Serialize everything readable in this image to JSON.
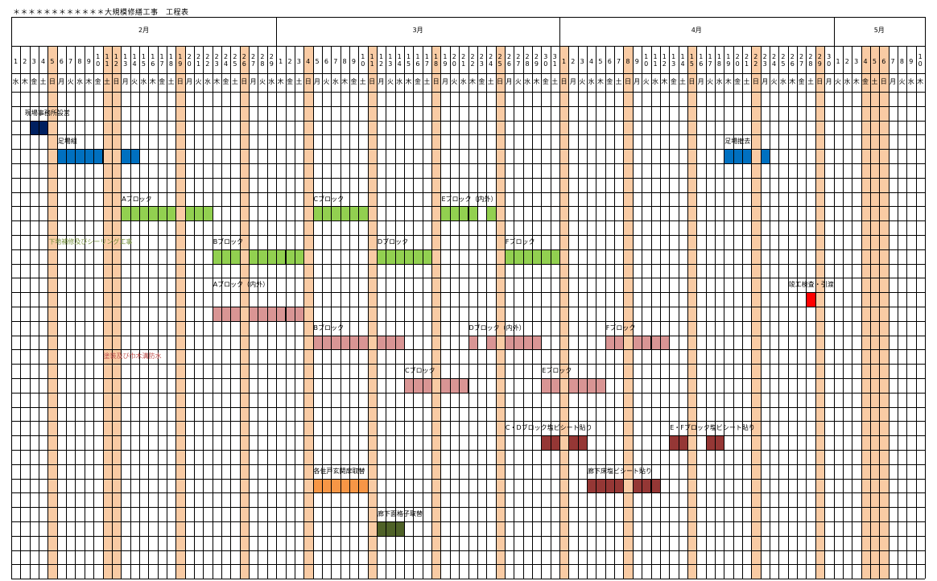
{
  "doc_title": "＊＊＊＊＊＊＊＊＊＊＊＊大規模修繕工事　工程表",
  "months": [
    "2月",
    "3月",
    "4月",
    "5月"
  ],
  "day_numbers": [
    "1",
    "2",
    "3",
    "4",
    "5",
    "6",
    "7",
    "8",
    "9",
    "10",
    "11",
    "12",
    "13",
    "14",
    "15",
    "16",
    "17",
    "18",
    "19",
    "20",
    "21",
    "22",
    "23",
    "24",
    "25",
    "26",
    "27",
    "28",
    "29",
    "1",
    "2",
    "3",
    "4",
    "5",
    "6",
    "7",
    "8",
    "9",
    "10",
    "11",
    "12",
    "13",
    "14",
    "15",
    "16",
    "17",
    "18",
    "19",
    "20",
    "21",
    "22",
    "23",
    "24",
    "25",
    "26",
    "27",
    "28",
    "29",
    "30",
    "31",
    "1",
    "2",
    "3",
    "4",
    "5",
    "6",
    "7",
    "8",
    "9",
    "10",
    "11",
    "12",
    "13",
    "14",
    "15",
    "16",
    "17",
    "18",
    "19",
    "20",
    "21",
    "22",
    "23",
    "24",
    "25",
    "26",
    "27",
    "28",
    "29",
    "30",
    "1",
    "2",
    "3",
    "4",
    "5",
    "6",
    "7",
    "8",
    "9",
    "10"
  ],
  "weekday_labels": [
    "水",
    "木",
    "金",
    "土",
    "日",
    "月",
    "火",
    "水",
    "木",
    "金",
    "土",
    "日",
    "月",
    "火",
    "水",
    "木",
    "金",
    "土",
    "日",
    "月",
    "火",
    "水",
    "木",
    "金",
    "土",
    "日",
    "月",
    "火",
    "水",
    "木",
    "金",
    "土",
    "日",
    "月",
    "火",
    "水",
    "木",
    "金",
    "土",
    "日",
    "月",
    "火",
    "水",
    "木",
    "金",
    "土",
    "日",
    "月",
    "火",
    "水",
    "木",
    "金",
    "土",
    "日",
    "月",
    "火",
    "水",
    "木",
    "金",
    "土",
    "日",
    "月",
    "火",
    "水",
    "木",
    "金",
    "土",
    "日",
    "月",
    "火",
    "水",
    "木",
    "金",
    "土",
    "日",
    "月",
    "火",
    "水",
    "木",
    "金",
    "土",
    "日",
    "月",
    "火",
    "水",
    "木",
    "金",
    "土",
    "日",
    "月",
    "火",
    "水",
    "木",
    "金",
    "土",
    "日",
    "月",
    "火",
    "水",
    "木"
  ],
  "holiday_columns": [
    4,
    10,
    11,
    18,
    25,
    32,
    39,
    46,
    53,
    60,
    67,
    74,
    81,
    88,
    93,
    94,
    95
  ],
  "labels": [
    {
      "id": "genba",
      "text": "現場事務所設営",
      "color": "#000000"
    },
    {
      "id": "ashiba",
      "text": "足場組",
      "color": "#000000"
    },
    {
      "id": "ashiba_tekkyo",
      "text": "足場撤去",
      "color": "#000000"
    },
    {
      "id": "shitaji_A",
      "text": "Aブロック",
      "color": "#000000"
    },
    {
      "id": "shitaji_C",
      "text": "Cブロック",
      "color": "#000000"
    },
    {
      "id": "shitaji_E",
      "text": "Eブロック（内外）",
      "color": "#000000"
    },
    {
      "id": "shitaji_section",
      "text": "下地補修及びシーリング工事",
      "color": "#76923c"
    },
    {
      "id": "shitaji_B",
      "text": "Bブロック",
      "color": "#000000"
    },
    {
      "id": "shitaji_D",
      "text": "Dブロック",
      "color": "#000000"
    },
    {
      "id": "shitaji_F",
      "text": "Fブロック",
      "color": "#000000"
    },
    {
      "id": "shunko",
      "text": "竣工検査・引渡",
      "color": "#000000"
    },
    {
      "id": "toso_A",
      "text": "Aブロック（内外）",
      "color": "#000000"
    },
    {
      "id": "toso_B",
      "text": "Bブロック",
      "color": "#000000"
    },
    {
      "id": "toso_D",
      "text": "Dブロック（内外）",
      "color": "#000000"
    },
    {
      "id": "toso_F",
      "text": "Fブロック",
      "color": "#000000"
    },
    {
      "id": "toso_section",
      "text": "塗装及び巾木溝防水",
      "color": "#c0504d"
    },
    {
      "id": "toso_C",
      "text": "Cブロック",
      "color": "#000000"
    },
    {
      "id": "toso_E",
      "text": "Eブロック",
      "color": "#000000"
    },
    {
      "id": "sheet_CD",
      "text": "C・Dブロック塩ビシート貼り",
      "color": "#000000"
    },
    {
      "id": "sheet_EF",
      "text": "E・Fブロック塩ビシート貼り",
      "color": "#000000"
    },
    {
      "id": "genkan",
      "text": "各住戸玄関扉取替",
      "color": "#000000"
    },
    {
      "id": "roka_yuka",
      "text": "廊下床塩ビシート貼り",
      "color": "#000000"
    },
    {
      "id": "roka_koshi",
      "text": "廊下面格子取替",
      "color": "#000000"
    }
  ],
  "bars": [
    {
      "task": "現場事務所設営",
      "color": "#002060",
      "days": [
        2,
        3
      ]
    },
    {
      "task": "足場組",
      "color": "#0070c0",
      "days": [
        5,
        6,
        7,
        8,
        9,
        12,
        13
      ]
    },
    {
      "task": "足場撤去",
      "color": "#0070c0",
      "days": [
        78,
        79,
        80,
        82
      ]
    },
    {
      "task": "下地 Aブロック",
      "color": "#92d050",
      "days": [
        12,
        13,
        14,
        15,
        16,
        17,
        19,
        20,
        21
      ]
    },
    {
      "task": "下地 Cブロック",
      "color": "#92d050",
      "days": [
        33,
        34,
        35,
        36,
        37,
        38
      ]
    },
    {
      "task": "下地 Eブロック（内外）",
      "color": "#92d050",
      "days": [
        47,
        48,
        49,
        50,
        52
      ]
    },
    {
      "task": "下地 Bブロック",
      "color": "#92d050",
      "days": [
        22,
        23,
        24,
        26,
        27,
        28,
        29,
        30,
        31
      ]
    },
    {
      "task": "下地 Dブロック",
      "color": "#92d050",
      "days": [
        40,
        41,
        42,
        43,
        44,
        45
      ]
    },
    {
      "task": "下地 Fブロック",
      "color": "#92d050",
      "days": [
        54,
        55,
        56,
        57,
        58,
        59
      ]
    },
    {
      "task": "竣工検査・引渡",
      "color": "#ff0000",
      "days": [
        87
      ]
    },
    {
      "task": "塗装 Aブロック（内外）",
      "color": "#d99594",
      "days": [
        22,
        23,
        24,
        26,
        27,
        28,
        29,
        30,
        31
      ]
    },
    {
      "task": "塗装 Bブロック",
      "color": "#d99594",
      "days": [
        33,
        34,
        35,
        36,
        37,
        38,
        40,
        41,
        42
      ]
    },
    {
      "task": "塗装 Dブロック（内外）",
      "color": "#d99594",
      "days": [
        50,
        52,
        54,
        55,
        56,
        57
      ]
    },
    {
      "task": "塗装 Fブロック",
      "color": "#d99594",
      "days": [
        65,
        66,
        68,
        69,
        70,
        71
      ]
    },
    {
      "task": "塗装 Cブロック",
      "color": "#d99594",
      "days": [
        43,
        44,
        45,
        47,
        48,
        49
      ]
    },
    {
      "task": "塗装 Eブロック",
      "color": "#d99594",
      "days": [
        58,
        59,
        61,
        62,
        63,
        64
      ]
    },
    {
      "task": "C・Dブロック塩ビシート貼り",
      "color": "#953735",
      "days": [
        58,
        59,
        61,
        62
      ]
    },
    {
      "task": "E・Fブロック塩ビシート貼り",
      "color": "#953735",
      "days": [
        72,
        73,
        76,
        77
      ]
    },
    {
      "task": "各住戸玄関扉取替",
      "color": "#f79646",
      "days": [
        33,
        34,
        35,
        36,
        37,
        38
      ]
    },
    {
      "task": "廊下床塩ビシート貼り",
      "color": "#953735",
      "days": [
        63,
        64,
        65,
        66,
        68,
        69,
        70
      ]
    },
    {
      "task": "廊下面格子取替",
      "color": "#4f6228",
      "days": [
        40,
        41,
        42
      ]
    }
  ]
}
